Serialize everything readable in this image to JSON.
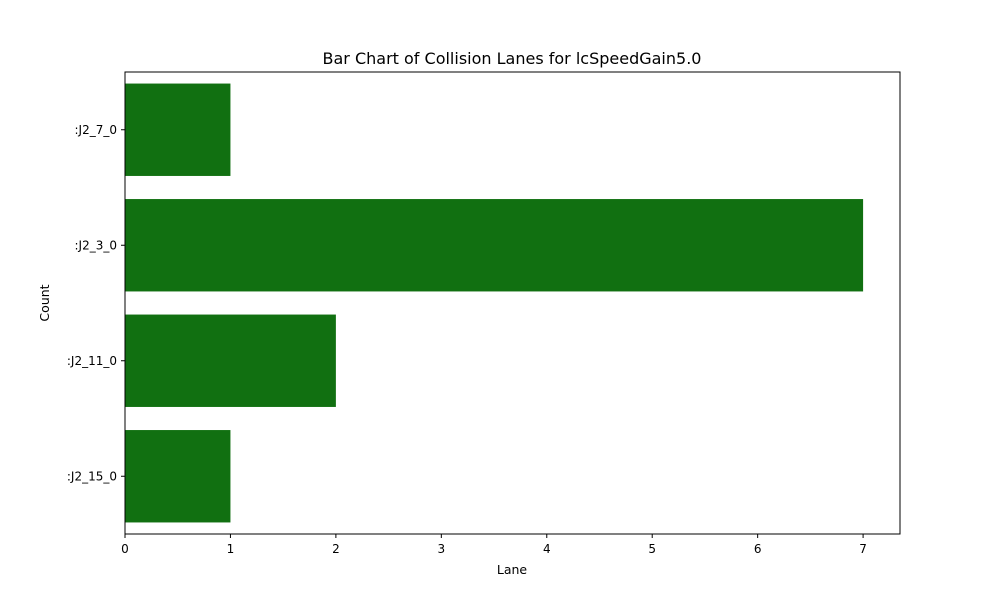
{
  "chart_data": {
    "type": "bar",
    "orientation": "horizontal",
    "title": "Bar Chart of Collision Lanes for lcSpeedGain5.0",
    "xlabel": "Lane",
    "ylabel": "Count",
    "categories": [
      ":J2_7_0",
      ":J2_3_0",
      ":J2_11_0",
      ":J2_15_0"
    ],
    "values": [
      1,
      7,
      2,
      1
    ],
    "xlim": [
      0,
      7.35
    ],
    "xticks": [
      0,
      1,
      2,
      3,
      4,
      5,
      6,
      7
    ],
    "grid": false,
    "legend": "none",
    "bar_color": "#117011"
  }
}
